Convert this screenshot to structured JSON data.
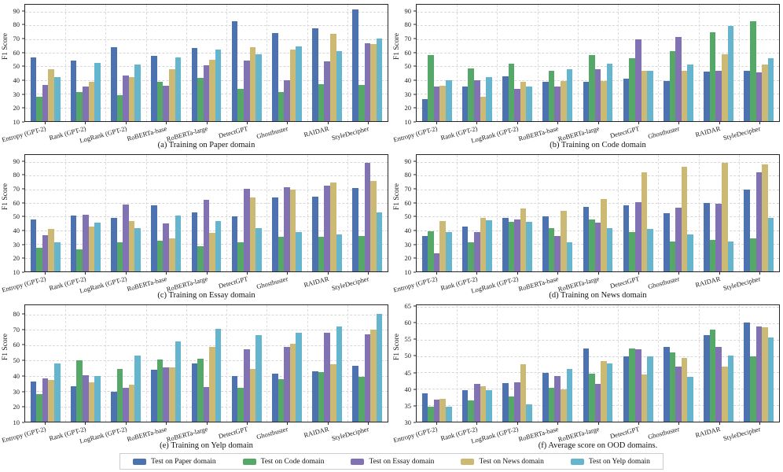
{
  "figure": {
    "background": "#ffffff",
    "spine_color": "#262626",
    "grid_color": "#d7d7d7"
  },
  "chart_data": {
    "type": "bar",
    "ylabel": "F1 Score",
    "grid": true,
    "legend_position": "bottom",
    "categories": [
      "Entropy (GPT-2)",
      "Rank (GPT-2)",
      "LogRank (GPT-2)",
      "RoBERTa-base",
      "RoBERTa-large",
      "DetectGPT",
      "Ghostbuster",
      "RAIDAR",
      "StyleDecipher"
    ],
    "series": [
      {
        "name": "Test on Paper domain",
        "color": "#4C72B0"
      },
      {
        "name": "Test on Code domain",
        "color": "#55A868"
      },
      {
        "name": "Test on Essay domain",
        "color": "#8172B3"
      },
      {
        "name": "Test on News domain",
        "color": "#CCB974"
      },
      {
        "name": "Test on Yelp domain",
        "color": "#64B5CD"
      }
    ],
    "charts": [
      {
        "caption": "(a) Training on Paper domain",
        "ylim": [
          10,
          95
        ],
        "yticks": [
          10,
          20,
          30,
          40,
          50,
          60,
          70,
          80,
          90
        ],
        "values": [
          [
            56.5,
            54.5,
            64,
            57.5,
            63.5,
            83,
            74.5,
            78,
            91.5
          ],
          [
            28,
            31,
            29,
            38.5,
            41.5,
            33.5,
            31,
            37,
            36.5
          ],
          [
            36.5,
            35.5,
            43.5,
            36,
            51,
            54,
            40,
            53.5,
            67
          ],
          [
            48,
            38.5,
            42,
            48,
            55,
            64,
            62.5,
            73.5,
            66.5
          ],
          [
            42,
            52.5,
            51.5,
            56.5,
            62,
            59,
            64.5,
            61,
            70.5
          ]
        ]
      },
      {
        "caption": "(b) Training on Code domain",
        "ylim": [
          10,
          95
        ],
        "yticks": [
          10,
          20,
          30,
          40,
          50,
          60,
          70,
          80,
          90
        ],
        "values": [
          [
            26,
            35,
            43,
            39,
            39,
            41,
            39.5,
            46,
            46.5
          ],
          [
            58,
            48.5,
            52,
            46.5,
            58,
            56,
            61,
            75,
            83
          ],
          [
            35.5,
            40,
            33.5,
            35,
            48,
            69.5,
            71.5,
            47,
            45.5
          ],
          [
            36,
            28,
            39,
            39.5,
            39.5,
            47,
            46.5,
            59,
            51.5
          ],
          [
            40,
            42,
            35,
            48,
            52,
            47,
            51.5,
            79.5,
            56
          ]
        ]
      },
      {
        "caption": "(c) Training on Essay domain",
        "ylim": [
          10,
          95
        ],
        "yticks": [
          10,
          20,
          30,
          40,
          50,
          60,
          70,
          80,
          90
        ],
        "values": [
          [
            48,
            51,
            49,
            58.5,
            53,
            50,
            64,
            64.5,
            71
          ],
          [
            27,
            26,
            31,
            32.5,
            28.5,
            31.5,
            35.5,
            35,
            36
          ],
          [
            36.5,
            51.5,
            59,
            45,
            62,
            70.5,
            71.5,
            72.5,
            89
          ],
          [
            41,
            43,
            46.5,
            34,
            38,
            64,
            70,
            75,
            76
          ],
          [
            31,
            45.5,
            41.5,
            50.5,
            47,
            41.5,
            38.5,
            37,
            53
          ]
        ]
      },
      {
        "caption": "(d) Training on News domain",
        "ylim": [
          10,
          95
        ],
        "yticks": [
          10,
          20,
          30,
          40,
          50,
          60,
          70,
          80,
          90
        ],
        "values": [
          [
            36,
            42.5,
            49,
            50,
            57,
            58.5,
            52.5,
            60,
            70
          ],
          [
            39.5,
            31,
            46,
            41.5,
            48,
            39,
            32,
            33,
            34
          ],
          [
            23.5,
            39,
            48,
            36,
            45.5,
            60.5,
            56.5,
            59.5,
            82.5
          ],
          [
            46.5,
            49,
            56,
            54.5,
            63,
            82.5,
            86.5,
            89.5,
            88
          ],
          [
            39,
            47.5,
            46,
            31,
            41.5,
            41,
            37,
            32,
            49
          ]
        ]
      },
      {
        "caption": "(e) Training on Yelp domain",
        "ylim": [
          10,
          86
        ],
        "yticks": [
          10,
          20,
          30,
          40,
          50,
          60,
          70,
          80
        ],
        "values": [
          [
            36,
            33,
            29.5,
            44,
            48,
            40,
            41.5,
            43,
            46.5
          ],
          [
            28,
            50,
            44.5,
            50.5,
            51,
            32,
            37.5,
            42.5,
            39.5
          ],
          [
            38,
            40.5,
            32,
            45.5,
            32.5,
            57.5,
            59,
            68,
            67
          ],
          [
            37,
            35.5,
            34,
            45.5,
            59,
            44.5,
            61,
            47.5,
            70
          ],
          [
            48,
            40,
            53,
            62.5,
            70.5,
            66.5,
            68,
            72,
            80.5
          ]
        ]
      },
      {
        "caption": "(f) Average score on OOD domains.",
        "ylim": [
          30,
          65.5
        ],
        "yticks": [
          30,
          35,
          40,
          45,
          50,
          55,
          60,
          65
        ],
        "values": [
          [
            38.6,
            39.5,
            41.7,
            44.8,
            52.4,
            49.8,
            52.8,
            56.3,
            60.3
          ],
          [
            34.5,
            36.4,
            37.7,
            40.4,
            44.7,
            52.4,
            51.2,
            58.1,
            50.0
          ],
          [
            36.7,
            41.5,
            42.0,
            43.9,
            41.6,
            52.1,
            46.9,
            52.8,
            59.1
          ],
          [
            37.0,
            40.7,
            47.4,
            39.9,
            48.4,
            44.5,
            49.4,
            46.8,
            58.9
          ],
          [
            34.6,
            39.7,
            35.3,
            46.0,
            47.7,
            49.9,
            43.6,
            50.1,
            55.7
          ]
        ]
      }
    ]
  }
}
